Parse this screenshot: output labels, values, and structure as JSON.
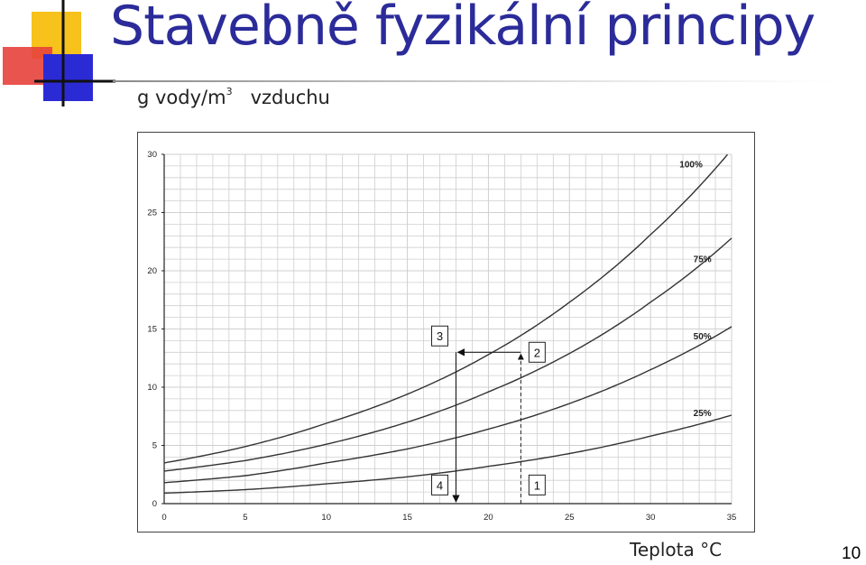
{
  "slide": {
    "title": "Stavebně fyzikální principy",
    "page_number": "10"
  },
  "colors": {
    "title": "#2b2b9a",
    "logo_yellow": "#f6c21b",
    "logo_red": "#e8413c",
    "logo_blue": "#2b2bd6",
    "grid": "#cfcfcf",
    "curve": "#333333"
  },
  "chart_data": {
    "type": "line",
    "ylabel_prefix": "g vody/m",
    "ylabel_superscript": "3",
    "ylabel_suffix": "vzduchu",
    "xlabel": "Teplota °C",
    "xlim": [
      0,
      35
    ],
    "ylim": [
      0,
      30
    ],
    "xticks": [
      "0",
      "5",
      "10",
      "15",
      "20",
      "25",
      "30",
      "35"
    ],
    "yticks": [
      "0",
      "5",
      "10",
      "15",
      "20",
      "25",
      "30"
    ],
    "grid": true,
    "series": [
      {
        "name": "100%",
        "x": [
          0,
          5,
          10,
          15,
          20,
          25,
          30,
          35
        ],
        "y": [
          3.5,
          4.9,
          6.9,
          9.4,
          12.8,
          17.3,
          23.1,
          30.4
        ]
      },
      {
        "name": "75%",
        "x": [
          0,
          5,
          10,
          15,
          20,
          25,
          30,
          35
        ],
        "y": [
          2.8,
          3.7,
          5.1,
          7.0,
          9.6,
          12.9,
          17.3,
          22.8
        ]
      },
      {
        "name": "50%",
        "x": [
          0,
          5,
          10,
          15,
          20,
          25,
          30,
          35
        ],
        "y": [
          1.8,
          2.4,
          3.5,
          4.7,
          6.4,
          8.6,
          11.5,
          15.2
        ]
      },
      {
        "name": "25%",
        "x": [
          0,
          5,
          10,
          15,
          20,
          25,
          30,
          35
        ],
        "y": [
          0.9,
          1.2,
          1.7,
          2.3,
          3.2,
          4.3,
          5.8,
          7.6
        ]
      }
    ],
    "annotations": [
      {
        "label": "1",
        "x": 23,
        "y": 1.6
      },
      {
        "label": "2",
        "x": 23,
        "y": 13.0
      },
      {
        "label": "3",
        "x": 17,
        "y": 14.4
      },
      {
        "label": "4",
        "x": 17,
        "y": 1.6
      }
    ],
    "construction": {
      "t_start": 22,
      "t_dew": 18,
      "moisture": 13
    }
  }
}
